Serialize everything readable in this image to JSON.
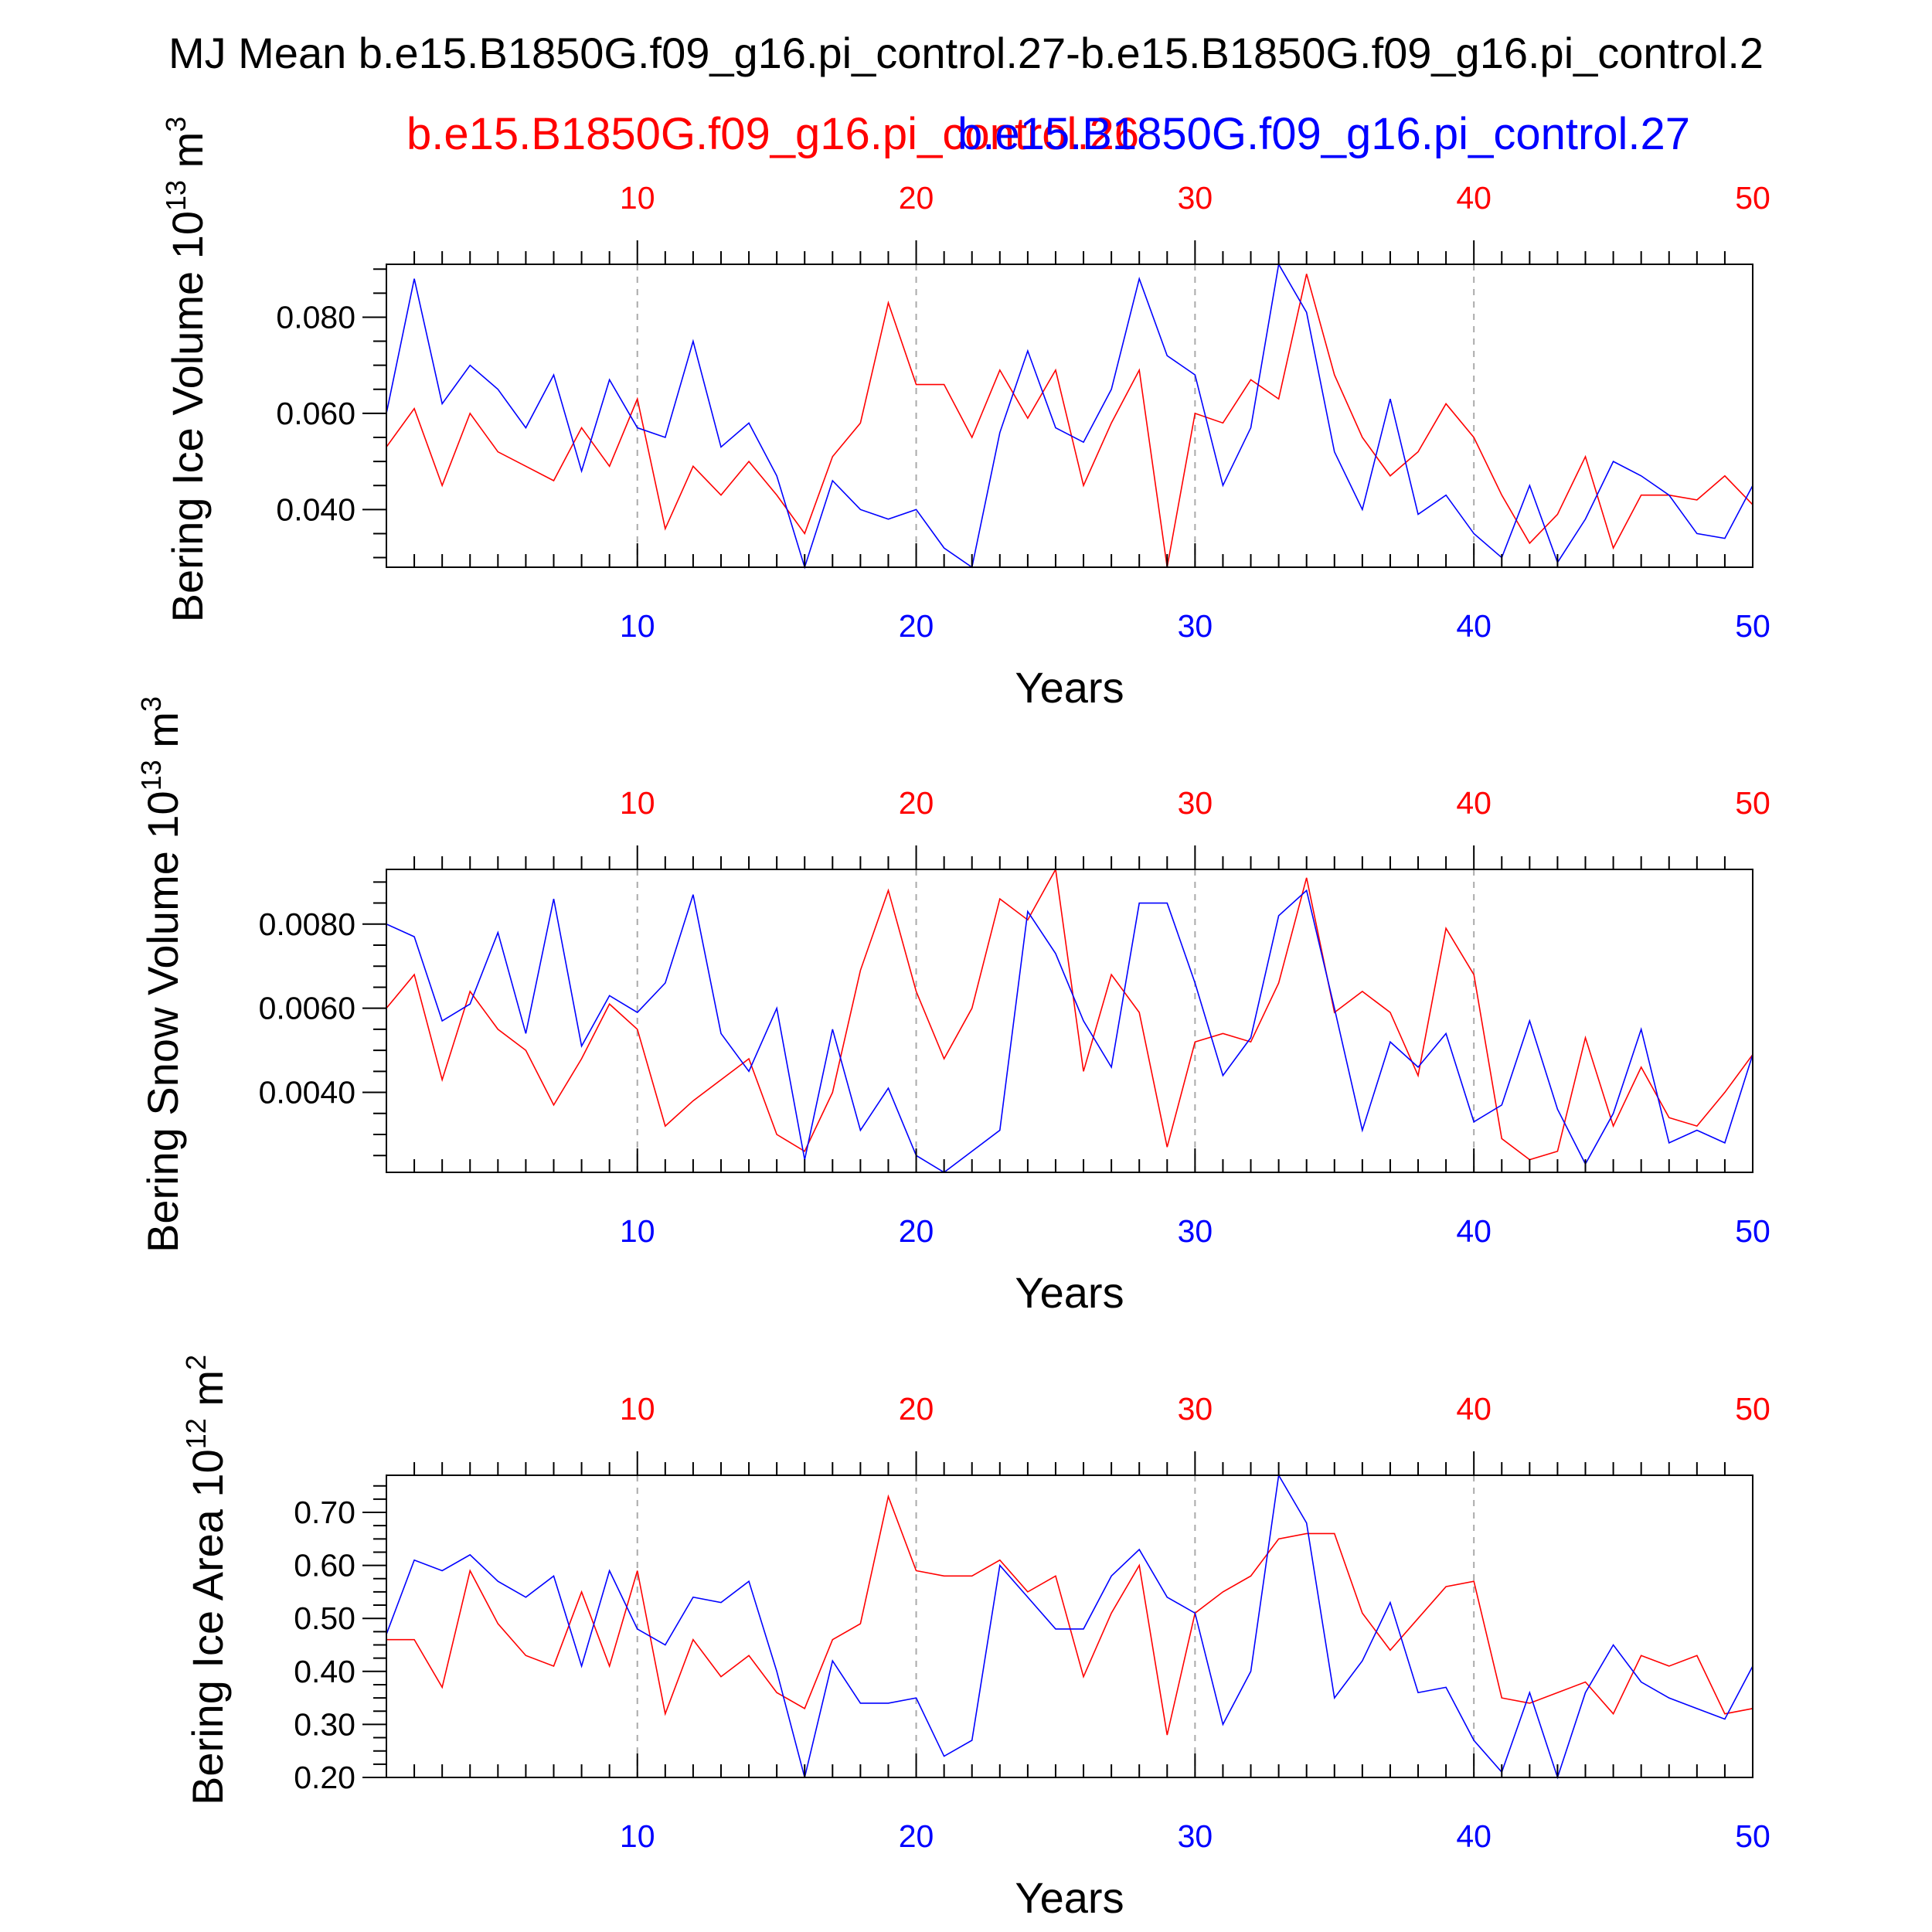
{
  "title": "MJ Mean b.e15.B1850G.f09_g16.pi_control.27-b.e15.B1850G.f09_g16.pi_control.2",
  "series_labels": {
    "red": "b.e15.B1850G.f09_g16.pi_control.26",
    "blue": "b.e15.B1850G.f09_g16.pi_control.27"
  },
  "colors": {
    "red": "#ff0000",
    "blue": "#0000ff"
  },
  "chart_data": [
    {
      "type": "line",
      "xlabel": "Years",
      "ylabel_main": "Bering Ice Volume 10",
      "ylabel_exp": "13",
      "ylabel_unit": " m",
      "ylabel_unit_exp": "3",
      "xlim": [
        1,
        50
      ],
      "ylim": [
        0.028,
        0.091
      ],
      "x_ticks": [
        10,
        20,
        30,
        40,
        50
      ],
      "y_ticks": [
        0.04,
        0.06,
        0.08
      ],
      "y_tick_labels": [
        "0.040",
        "0.060",
        "0.080"
      ],
      "y_minor_step": 0.005,
      "series": [
        {
          "color": "red",
          "values": [
            0.053,
            0.061,
            0.045,
            0.06,
            0.052,
            0.049,
            0.046,
            0.057,
            0.049,
            0.063,
            0.036,
            0.049,
            0.043,
            0.05,
            0.043,
            0.035,
            0.051,
            0.058,
            0.083,
            0.066,
            0.066,
            0.055,
            0.069,
            0.059,
            0.069,
            0.045,
            0.058,
            0.069,
            0.028,
            0.06,
            0.058,
            0.067,
            0.063,
            0.089,
            0.068,
            0.055,
            0.047,
            0.052,
            0.062,
            0.055,
            0.043,
            0.033,
            0.039,
            0.051,
            0.032,
            0.043,
            0.043,
            0.042,
            0.047,
            0.041
          ]
        },
        {
          "color": "blue",
          "values": [
            0.06,
            0.088,
            0.062,
            0.07,
            0.065,
            0.057,
            0.068,
            0.048,
            0.067,
            0.057,
            0.055,
            0.075,
            0.053,
            0.058,
            0.047,
            0.028,
            0.046,
            0.04,
            0.038,
            0.04,
            0.032,
            0.028,
            0.056,
            0.073,
            0.057,
            0.054,
            0.065,
            0.088,
            0.072,
            0.068,
            0.045,
            0.057,
            0.091,
            0.081,
            0.052,
            0.04,
            0.063,
            0.039,
            0.043,
            0.035,
            0.03,
            0.045,
            0.029,
            0.038,
            0.05,
            0.047,
            0.043,
            0.035,
            0.034,
            0.045
          ]
        }
      ]
    },
    {
      "type": "line",
      "xlabel": "Years",
      "ylabel_main": "Bering Snow Volume 10",
      "ylabel_exp": "13",
      "ylabel_unit": " m",
      "ylabel_unit_exp": "3",
      "xlim": [
        1,
        50
      ],
      "ylim": [
        0.0021,
        0.0093
      ],
      "x_ticks": [
        10,
        20,
        30,
        40,
        50
      ],
      "y_ticks": [
        0.004,
        0.006,
        0.008
      ],
      "y_tick_labels": [
        "0.0040",
        "0.0060",
        "0.0080"
      ],
      "y_minor_step": 0.0005,
      "series": [
        {
          "color": "red",
          "values": [
            0.006,
            0.0068,
            0.0043,
            0.0064,
            0.0055,
            0.005,
            0.0037,
            0.0048,
            0.0061,
            0.0055,
            0.0032,
            0.0038,
            0.0043,
            0.0048,
            0.003,
            0.0026,
            0.004,
            0.0069,
            0.0088,
            0.0064,
            0.0048,
            0.006,
            0.0086,
            0.0081,
            0.0093,
            0.0045,
            0.0068,
            0.0059,
            0.0027,
            0.0052,
            0.0054,
            0.0052,
            0.0066,
            0.0091,
            0.0059,
            0.0064,
            0.0059,
            0.0044,
            0.0079,
            0.0068,
            0.0029,
            0.0024,
            0.0026,
            0.0053,
            0.0032,
            0.0046,
            0.0034,
            0.0032,
            0.004,
            0.0049
          ]
        },
        {
          "color": "blue",
          "values": [
            0.008,
            0.0077,
            0.0057,
            0.0061,
            0.0078,
            0.0054,
            0.0086,
            0.0051,
            0.0063,
            0.0059,
            0.0066,
            0.0087,
            0.0054,
            0.0045,
            0.006,
            0.0024,
            0.0055,
            0.0031,
            0.0041,
            0.0025,
            0.0021,
            0.0026,
            0.0031,
            0.0083,
            0.0073,
            0.0057,
            0.0046,
            0.0085,
            0.0085,
            0.0066,
            0.0044,
            0.0053,
            0.0082,
            0.0088,
            0.006,
            0.0031,
            0.0052,
            0.0046,
            0.0054,
            0.0033,
            0.0037,
            0.0057,
            0.0036,
            0.0023,
            0.0035,
            0.0055,
            0.0028,
            0.0031,
            0.0028,
            0.0049
          ]
        }
      ]
    },
    {
      "type": "line",
      "xlabel": "Years",
      "ylabel_main": "Bering Ice Area 10",
      "ylabel_exp": "12",
      "ylabel_unit": " m",
      "ylabel_unit_exp": "2",
      "xlim": [
        1,
        50
      ],
      "ylim": [
        0.2,
        0.77
      ],
      "x_ticks": [
        10,
        20,
        30,
        40,
        50
      ],
      "y_ticks": [
        0.2,
        0.3,
        0.4,
        0.5,
        0.6,
        0.7
      ],
      "y_tick_labels": [
        "0.20",
        "0.30",
        "0.40",
        "0.50",
        "0.60",
        "0.70"
      ],
      "y_minor_step": 0.025,
      "series": [
        {
          "color": "red",
          "values": [
            0.46,
            0.46,
            0.37,
            0.59,
            0.49,
            0.43,
            0.41,
            0.55,
            0.41,
            0.59,
            0.32,
            0.46,
            0.39,
            0.43,
            0.36,
            0.33,
            0.46,
            0.49,
            0.73,
            0.59,
            0.58,
            0.58,
            0.61,
            0.55,
            0.58,
            0.39,
            0.51,
            0.6,
            0.28,
            0.51,
            0.55,
            0.58,
            0.65,
            0.66,
            0.66,
            0.51,
            0.44,
            0.5,
            0.56,
            0.57,
            0.35,
            0.34,
            0.36,
            0.38,
            0.32,
            0.43,
            0.41,
            0.43,
            0.32,
            0.33
          ]
        },
        {
          "color": "blue",
          "values": [
            0.47,
            0.61,
            0.59,
            0.62,
            0.57,
            0.54,
            0.58,
            0.41,
            0.59,
            0.48,
            0.45,
            0.54,
            0.53,
            0.57,
            0.4,
            0.2,
            0.42,
            0.34,
            0.34,
            0.35,
            0.24,
            0.27,
            0.6,
            0.54,
            0.48,
            0.48,
            0.58,
            0.63,
            0.54,
            0.51,
            0.3,
            0.4,
            0.77,
            0.68,
            0.35,
            0.42,
            0.53,
            0.36,
            0.37,
            0.27,
            0.21,
            0.36,
            0.2,
            0.36,
            0.45,
            0.38,
            0.35,
            0.33,
            0.31,
            0.41
          ]
        }
      ]
    }
  ]
}
